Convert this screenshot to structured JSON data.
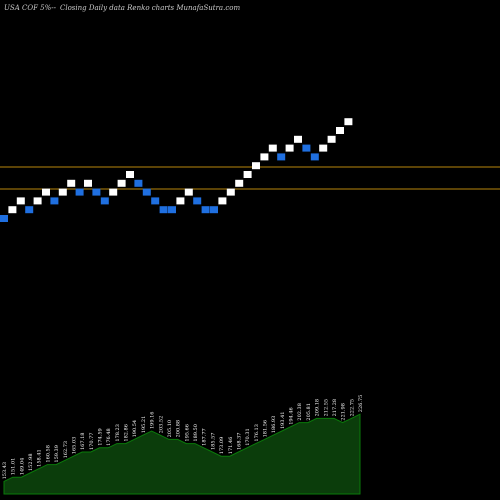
{
  "chart_data": {
    "type": "renko",
    "header": {
      "symbol": "USA COF 5%-- ",
      "caption": "Closing Daily data  Renko  charts MunafaSutra.com"
    },
    "colors": {
      "background": "#000000",
      "up_brick": "#ffffff",
      "down_brick": "#1f6fe0",
      "level_line": "#b8860b",
      "volume_fill": "#0b3d0b",
      "volume_edge": "#0a7a0a"
    },
    "bricks": [
      {
        "dir": "down",
        "level": 0
      },
      {
        "dir": "up",
        "level": 1
      },
      {
        "dir": "up",
        "level": 2
      },
      {
        "dir": "down",
        "level": 1
      },
      {
        "dir": "up",
        "level": 2
      },
      {
        "dir": "up",
        "level": 3
      },
      {
        "dir": "down",
        "level": 2
      },
      {
        "dir": "up",
        "level": 3
      },
      {
        "dir": "up",
        "level": 4
      },
      {
        "dir": "down",
        "level": 3
      },
      {
        "dir": "up",
        "level": 4
      },
      {
        "dir": "down",
        "level": 3
      },
      {
        "dir": "down",
        "level": 2
      },
      {
        "dir": "up",
        "level": 3
      },
      {
        "dir": "up",
        "level": 4
      },
      {
        "dir": "up",
        "level": 5
      },
      {
        "dir": "down",
        "level": 4
      },
      {
        "dir": "down",
        "level": 3
      },
      {
        "dir": "down",
        "level": 2
      },
      {
        "dir": "down",
        "level": 1
      },
      {
        "dir": "down",
        "level": 1
      },
      {
        "dir": "up",
        "level": 2
      },
      {
        "dir": "up",
        "level": 3
      },
      {
        "dir": "down",
        "level": 2
      },
      {
        "dir": "down",
        "level": 1
      },
      {
        "dir": "down",
        "level": 1
      },
      {
        "dir": "up",
        "level": 2
      },
      {
        "dir": "up",
        "level": 3
      },
      {
        "dir": "up",
        "level": 4
      },
      {
        "dir": "up",
        "level": 5
      },
      {
        "dir": "up",
        "level": 6
      },
      {
        "dir": "up",
        "level": 7
      },
      {
        "dir": "up",
        "level": 8
      },
      {
        "dir": "down",
        "level": 7
      },
      {
        "dir": "up",
        "level": 8
      },
      {
        "dir": "up",
        "level": 9
      },
      {
        "dir": "down",
        "level": 8
      },
      {
        "dir": "down",
        "level": 7
      },
      {
        "dir": "up",
        "level": 8
      },
      {
        "dir": "up",
        "level": 9
      },
      {
        "dir": "up",
        "level": 10
      },
      {
        "dir": "up",
        "level": 11
      }
    ],
    "level_lines": [
      0.42,
      0.62
    ],
    "volume": [
      3,
      4,
      4,
      5,
      6,
      7,
      7,
      8,
      9,
      10,
      10,
      11,
      11,
      12,
      12,
      13,
      14,
      15,
      14,
      13,
      13,
      12,
      12,
      11,
      10,
      9,
      9,
      10,
      11,
      12,
      13,
      14,
      15,
      16,
      17,
      17,
      18,
      18,
      18,
      17,
      18,
      19
    ],
    "volume_labels": [
      "153.43",
      "151.01",
      "149.04",
      "152.98",
      "158.41",
      "160.58",
      "159.39",
      "162.73",
      "165.03",
      "167.18",
      "170.77",
      "174.59",
      "176.48",
      "178.23",
      "182.86",
      "190.54",
      "195.21",
      "199.16",
      "203.52",
      "205.10",
      "200.88",
      "195.66",
      "189.50",
      "187.77",
      "185.57",
      "173.09",
      "171.46",
      "168.37",
      "170.31",
      "176.13",
      "181.56",
      "186.93",
      "193.41",
      "194.46",
      "202.38",
      "205.81",
      "209.18",
      "212.55",
      "217.28",
      "221.98",
      "222.75",
      "226.75"
    ],
    "y_axis_labels": [],
    "x_axis_labels": []
  }
}
